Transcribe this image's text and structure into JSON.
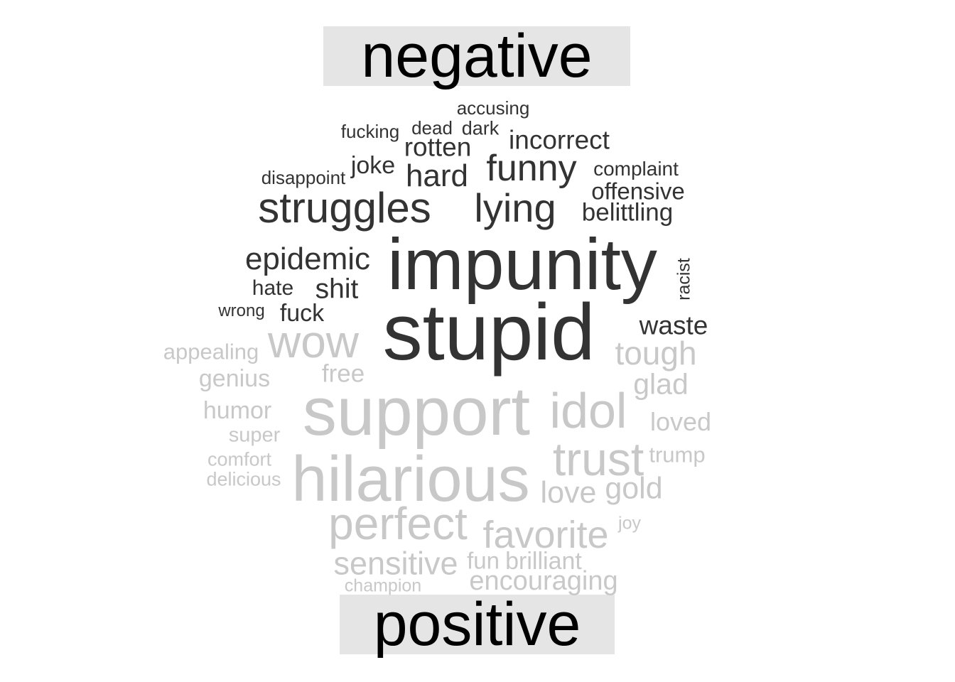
{
  "colors": {
    "negative": "#333333",
    "positive": "#c8c8c8",
    "header_bg": "#e5e5e5",
    "header_text": "#000000"
  },
  "chart_data": {
    "type": "wordcloud",
    "groups": [
      {
        "label": "negative",
        "words": [
          {
            "word": "stupid",
            "weight": 100
          },
          {
            "word": "impunity",
            "weight": 95
          },
          {
            "word": "struggles",
            "weight": 55
          },
          {
            "word": "lying",
            "weight": 52
          },
          {
            "word": "funny",
            "weight": 48
          },
          {
            "word": "hard",
            "weight": 40
          },
          {
            "word": "epidemic",
            "weight": 40
          },
          {
            "word": "shit",
            "weight": 36
          },
          {
            "word": "incorrect",
            "weight": 34
          },
          {
            "word": "rotten",
            "weight": 34
          },
          {
            "word": "waste",
            "weight": 34
          },
          {
            "word": "joke",
            "weight": 32
          },
          {
            "word": "belittling",
            "weight": 32
          },
          {
            "word": "offensive",
            "weight": 30
          },
          {
            "word": "fuck",
            "weight": 30
          },
          {
            "word": "hate",
            "weight": 27
          },
          {
            "word": "complaint",
            "weight": 26
          },
          {
            "word": "accusing",
            "weight": 25
          },
          {
            "word": "dark",
            "weight": 25
          },
          {
            "word": "dead",
            "weight": 24
          },
          {
            "word": "fucking",
            "weight": 24
          },
          {
            "word": "disappoint",
            "weight": 24
          },
          {
            "word": "racist",
            "weight": 24
          },
          {
            "word": "wrong",
            "weight": 22
          }
        ]
      },
      {
        "label": "positive",
        "words": [
          {
            "word": "support",
            "weight": 95
          },
          {
            "word": "hilarious",
            "weight": 90
          },
          {
            "word": "idol",
            "weight": 65
          },
          {
            "word": "trust",
            "weight": 62
          },
          {
            "word": "perfect",
            "weight": 60
          },
          {
            "word": "wow",
            "weight": 60
          },
          {
            "word": "favorite",
            "weight": 50
          },
          {
            "word": "tough",
            "weight": 44
          },
          {
            "word": "sensitive",
            "weight": 42
          },
          {
            "word": "gold",
            "weight": 40
          },
          {
            "word": "love",
            "weight": 40
          },
          {
            "word": "glad",
            "weight": 38
          },
          {
            "word": "encouraging",
            "weight": 36
          },
          {
            "word": "loved",
            "weight": 34
          },
          {
            "word": "free",
            "weight": 33
          },
          {
            "word": "humor",
            "weight": 32
          },
          {
            "word": "genius",
            "weight": 32
          },
          {
            "word": "brilliant",
            "weight": 32
          },
          {
            "word": "fun",
            "weight": 31
          },
          {
            "word": "appealing",
            "weight": 29
          },
          {
            "word": "trump",
            "weight": 29
          },
          {
            "word": "super",
            "weight": 27
          },
          {
            "word": "comfort",
            "weight": 25
          },
          {
            "word": "delicious",
            "weight": 25
          },
          {
            "word": "joy",
            "weight": 23
          },
          {
            "word": "champion",
            "weight": 23
          }
        ]
      }
    ]
  }
}
